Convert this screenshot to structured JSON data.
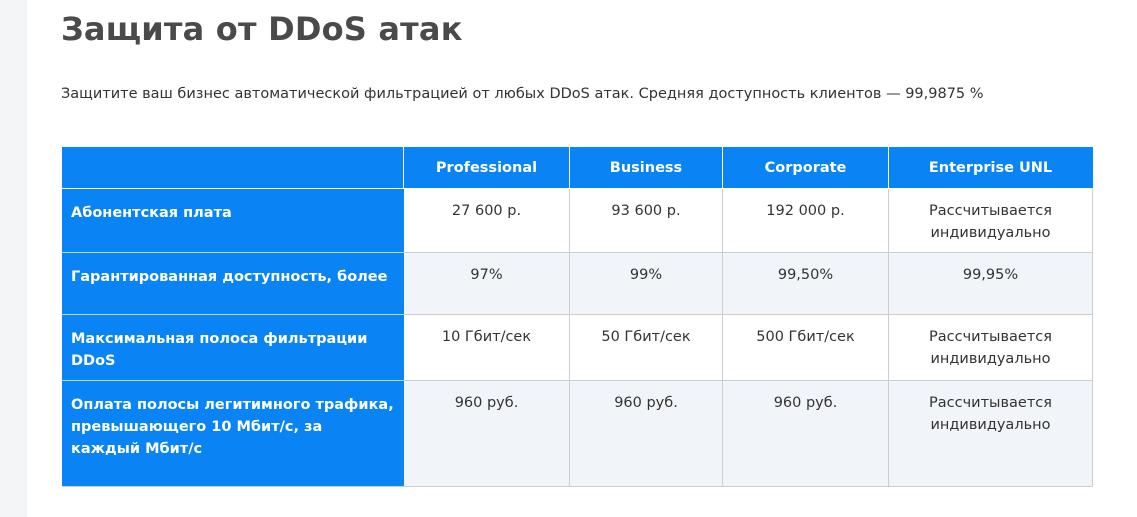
{
  "page": {
    "title": "Защита от DDoS атак",
    "subtitle": "Защитите ваш бизнес автоматической фильтрацией от любых DDoS атак. Средняя доступность клиентов — 99,9875 %"
  },
  "table": {
    "columns": [
      "Professional",
      "Business",
      "Corporate",
      "Enterprise UNL"
    ],
    "rows": [
      {
        "label": "Абонентская плата",
        "cells": [
          "27 600 р.",
          "93 600 р.",
          "192 000 р.",
          "Рассчитывается индивидуально"
        ]
      },
      {
        "label": "Гарантированная доступность, более",
        "cells": [
          "97%",
          "99%",
          "99,50%",
          "99,95%"
        ]
      },
      {
        "label": "Максимальная полоса фильтрации DDoS",
        "cells": [
          "10 Гбит/сек",
          "50 Гбит/сек",
          "500 Гбит/сек",
          "Рассчитывается индивидуально"
        ]
      },
      {
        "label": "Оплата полосы легитимного трафика, превышающего 10 Мбит/с, за каждый Мбит/с",
        "cells": [
          "960 руб.",
          "960 руб.",
          "960 руб.",
          "Рассчитывается индивидуально"
        ]
      }
    ]
  },
  "colors": {
    "accent": "#0a84f5",
    "title": "#4a4a4a",
    "text": "#333333",
    "row_alt": "#f1f4f8"
  }
}
